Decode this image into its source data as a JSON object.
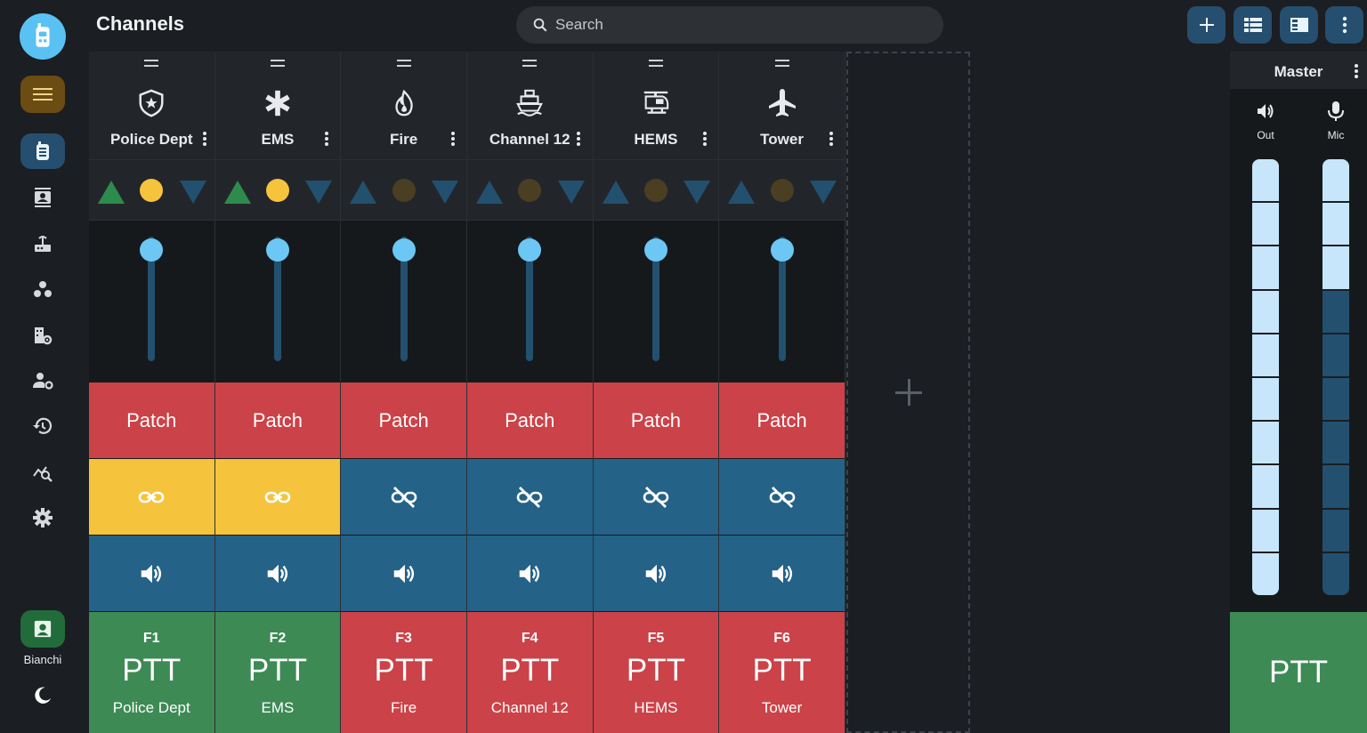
{
  "app": {
    "title": "Channels"
  },
  "search": {
    "placeholder": "Search",
    "value": ""
  },
  "sidebar": {
    "logo_icon": "radio-icon",
    "menu_icon": "hamburger-icon",
    "nav": [
      {
        "name": "radio",
        "icon": "radio-icon",
        "active": true
      },
      {
        "name": "contacts",
        "icon": "contacts-icon",
        "active": false
      },
      {
        "name": "router",
        "icon": "router-icon",
        "active": false
      },
      {
        "name": "groups",
        "icon": "group-icon",
        "active": false
      },
      {
        "name": "domain-settings",
        "icon": "domain-settings-icon",
        "active": false
      },
      {
        "name": "user-settings",
        "icon": "user-settings-icon",
        "active": false
      },
      {
        "name": "history",
        "icon": "history-icon",
        "active": false
      },
      {
        "name": "analytics",
        "icon": "analytics-icon",
        "active": false
      },
      {
        "name": "settings",
        "icon": "gear-icon",
        "active": false
      }
    ],
    "user": {
      "name": "Bianchi",
      "icon": "account-box-icon"
    },
    "theme_icon": "moon-icon"
  },
  "toolbar": {
    "buttons": [
      {
        "name": "add",
        "icon": "plus-icon"
      },
      {
        "name": "compact-view",
        "icon": "view-list-icon"
      },
      {
        "name": "side-panel",
        "icon": "view-sidebar-icon"
      },
      {
        "name": "more",
        "icon": "kebab-icon"
      }
    ]
  },
  "colors": {
    "patch": "#cb4248",
    "link_active": "#f6c33d",
    "link_inactive": "#246288",
    "ptt_green": "#3d8a55",
    "ptt_red": "#cb4248",
    "led_on": "#f6c33d",
    "led_off": "#4a3f22",
    "tri_up_active": "#2e8b4e",
    "tri_up_inactive": "#23506f",
    "tri_down": "#23506f",
    "fader_knob": "#6cc7f4"
  },
  "channels": [
    {
      "name": "Police Dept",
      "icon": "police-shield-icon",
      "led": "on",
      "up_active": true,
      "fader": 0.92,
      "patch_label": "Patch",
      "linked": true,
      "ptt_key": "F1",
      "ptt_label": "PTT",
      "ptt_state": "green"
    },
    {
      "name": "EMS",
      "icon": "star-of-life-icon",
      "led": "on",
      "up_active": true,
      "fader": 0.92,
      "patch_label": "Patch",
      "linked": true,
      "ptt_key": "F2",
      "ptt_label": "PTT",
      "ptt_state": "green"
    },
    {
      "name": "Fire",
      "icon": "fire-icon",
      "led": "off",
      "up_active": false,
      "fader": 0.92,
      "patch_label": "Patch",
      "linked": false,
      "ptt_key": "F3",
      "ptt_label": "PTT",
      "ptt_state": "red"
    },
    {
      "name": "Channel 12",
      "icon": "ship-icon",
      "led": "off",
      "up_active": false,
      "fader": 0.92,
      "patch_label": "Patch",
      "linked": false,
      "ptt_key": "F4",
      "ptt_label": "PTT",
      "ptt_state": "red"
    },
    {
      "name": "HEMS",
      "icon": "helicopter-icon",
      "led": "off",
      "up_active": false,
      "fader": 0.92,
      "patch_label": "Patch",
      "linked": false,
      "ptt_key": "F5",
      "ptt_label": "PTT",
      "ptt_state": "red"
    },
    {
      "name": "Tower",
      "icon": "airplane-icon",
      "led": "off",
      "up_active": false,
      "fader": 0.92,
      "patch_label": "Patch",
      "linked": false,
      "ptt_key": "F6",
      "ptt_label": "PTT",
      "ptt_state": "red"
    }
  ],
  "add_channel_icon": "plus-icon",
  "master": {
    "title": "Master",
    "out_label": "Out",
    "mic_label": "Mic",
    "out_icon": "speaker-icon",
    "mic_icon": "mic-icon",
    "out_level": 1.0,
    "mic_level": 0.3,
    "ptt_label": "PTT"
  }
}
